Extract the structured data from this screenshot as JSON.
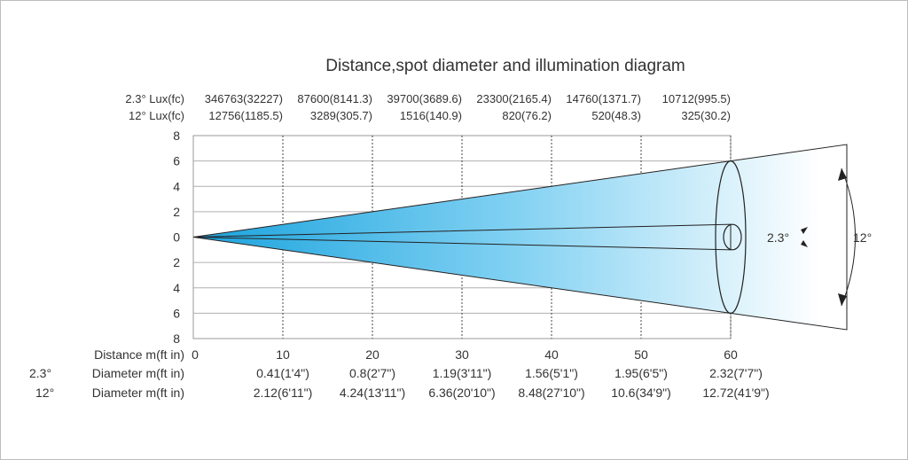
{
  "chart_data": {
    "type": "diagram",
    "title": "Distance,spot diameter and illumination diagram",
    "beam_color_start": "#1aa3dd",
    "beam_color_end": "#ffffff",
    "grid_color": "#b0b0b0",
    "y_ticks": [
      "8",
      "6",
      "4",
      "2",
      "0",
      "2",
      "4",
      "6",
      "8"
    ],
    "y_tick_values": [
      8,
      6,
      4,
      2,
      0,
      -2,
      -4,
      -6,
      -8
    ],
    "ylim": [
      -8,
      8
    ],
    "xlim": [
      0,
      70
    ],
    "row_labels": {
      "lux_23": "2.3° Lux(fc)",
      "lux_12": "12° Lux(fc)",
      "distance": "Distance m(ft in)",
      "diam_23_angle": "2.3°",
      "diam_23_label": "Diameter m(ft in)",
      "diam_12_angle": "12°",
      "diam_12_label": "Diameter m(ft in)"
    },
    "distances": [
      "0",
      "10",
      "20",
      "30",
      "40",
      "50",
      "60"
    ],
    "distance_values": [
      0,
      10,
      20,
      30,
      40,
      50,
      60
    ],
    "lux_23": [
      "346763(32227)",
      "87600(8141.3)",
      "39700(3689.6)",
      "23300(2165.4)",
      "14760(1371.7)",
      "10712(995.5)"
    ],
    "lux_12": [
      "12756(1185.5)",
      "3289(305.7)",
      "1516(140.9)",
      "820(76.2)",
      "520(48.3)",
      "325(30.2)"
    ],
    "diameter_23": [
      "0.41(1'4\")",
      "0.8(2'7\")",
      "1.19(3'11\")",
      "1.56(5'1\")",
      "1.95(6'5\")",
      "2.32(7'7\")"
    ],
    "diameter_12": [
      "2.12(6'11\")",
      "4.24(13'11\")",
      "6.36(20'10\")",
      "8.48(27'10\")",
      "10.6(34'9\")",
      "12.72(41'9\")"
    ],
    "beam_half_width_12": 6,
    "beam_half_width_23": 1,
    "angle_label_23": "2.3°",
    "angle_label_12": "12°"
  }
}
